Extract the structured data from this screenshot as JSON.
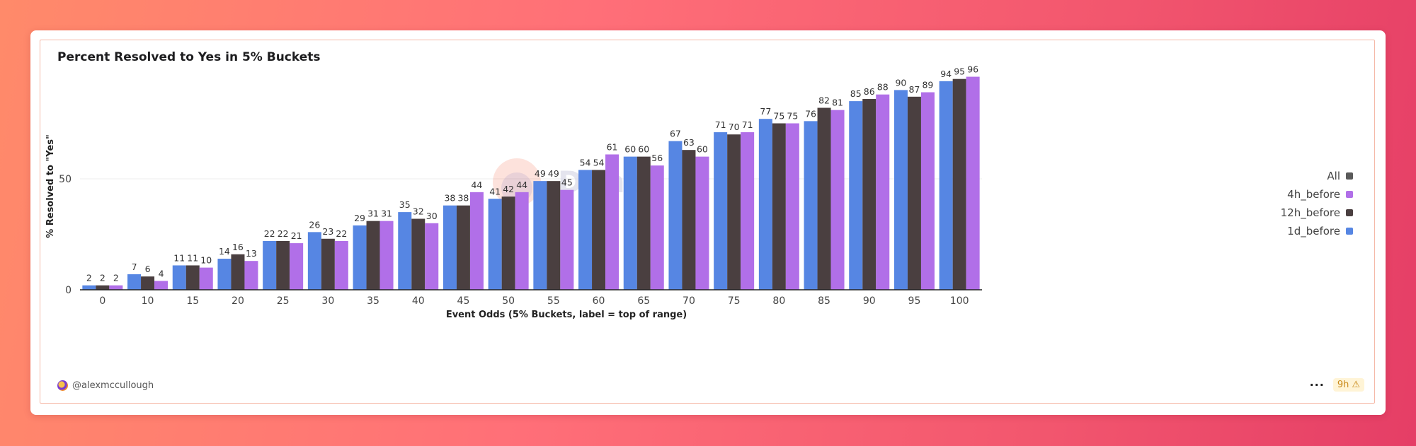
{
  "chart_data": {
    "type": "bar",
    "title": "Percent Resolved to Yes in 5% Buckets",
    "xlabel": "Event Odds (5% Buckets, label = top of range)",
    "ylabel": "% Resolved to \"Yes\"",
    "ylim": [
      0,
      100
    ],
    "yticks": [
      0,
      50
    ],
    "categories": [
      "0",
      "10",
      "15",
      "20",
      "25",
      "30",
      "35",
      "40",
      "45",
      "50",
      "55",
      "60",
      "65",
      "70",
      "75",
      "80",
      "85",
      "90",
      "95",
      "100"
    ],
    "series": [
      {
        "name": "1d_before",
        "color": "#5686e3",
        "values": [
          2,
          7,
          11,
          14,
          22,
          26,
          29,
          35,
          38,
          41,
          49,
          54,
          60,
          67,
          71,
          77,
          76,
          85,
          90,
          94
        ]
      },
      {
        "name": "12h_before",
        "color": "#4a3f40",
        "values": [
          2,
          6,
          11,
          16,
          22,
          23,
          31,
          32,
          38,
          42,
          49,
          54,
          60,
          63,
          70,
          75,
          82,
          86,
          87,
          95
        ]
      },
      {
        "name": "4h_before",
        "color": "#b16fe8",
        "values": [
          2,
          4,
          10,
          13,
          21,
          22,
          31,
          30,
          44,
          44,
          45,
          61,
          56,
          60,
          71,
          75,
          81,
          88,
          89,
          96
        ]
      }
    ],
    "legend": [
      {
        "label": "All",
        "color": "#5a5a5a"
      },
      {
        "label": "4h_before",
        "color": "#b16fe8"
      },
      {
        "label": "12h_before",
        "color": "#4a3f40"
      },
      {
        "label": "1d_before",
        "color": "#5686e3"
      }
    ],
    "watermark": "Dune"
  },
  "footer": {
    "author": "@alexmccullough",
    "age": "9h",
    "more": "···"
  }
}
